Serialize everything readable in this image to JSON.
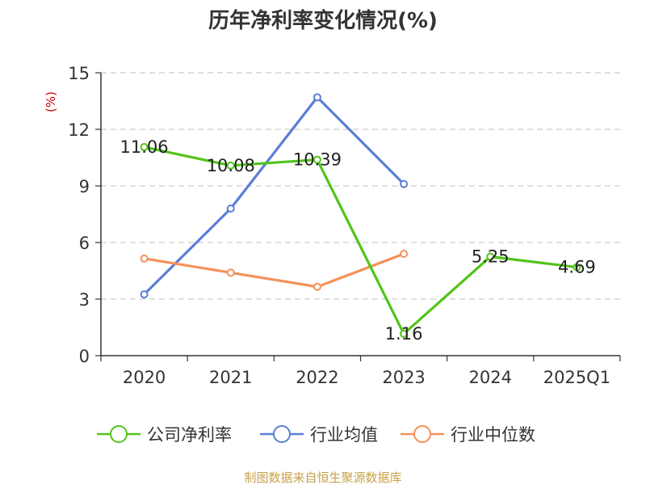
{
  "chart_data": {
    "type": "line",
    "title": "历年净利率变化情况(%)",
    "ylabel": "(%)",
    "categories": [
      "2020",
      "2021",
      "2022",
      "2023",
      "2024",
      "2025Q1"
    ],
    "ylim": [
      0,
      15
    ],
    "yticks": [
      0,
      3,
      6,
      9,
      12,
      15
    ],
    "grid": true,
    "legend_position": "bottom",
    "series": [
      {
        "name": "公司净利率",
        "color": "#52c41a",
        "values": [
          11.06,
          10.08,
          10.39,
          1.16,
          5.25,
          4.69
        ],
        "data_labels": [
          "11.06",
          "10.08",
          "10.39",
          "1.16",
          "5.25",
          "4.69"
        ]
      },
      {
        "name": "行业均值",
        "color": "#5b7fd6",
        "values": [
          3.25,
          7.8,
          13.7,
          9.1,
          null,
          null
        ]
      },
      {
        "name": "行业中位数",
        "color": "#f5915a",
        "values": [
          5.15,
          4.4,
          3.65,
          5.4,
          null,
          null
        ]
      }
    ],
    "source": "制图数据来自恒生聚源数据库",
    "colors": {
      "axis": "#333333",
      "grid": "#cccccc",
      "ylabel": "#cc0000",
      "source": "#c8a24a"
    }
  }
}
